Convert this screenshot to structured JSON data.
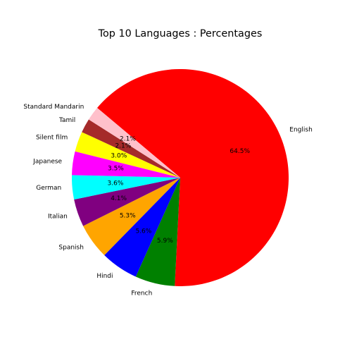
{
  "chart_data": {
    "type": "pie",
    "title": "Top 10 Languages : Percentages",
    "start_angle_deg": 140,
    "direction": "clockwise",
    "slices": [
      {
        "label": "English",
        "value": 64.5,
        "pct_label": "64.5%",
        "color": "#ff0000"
      },
      {
        "label": "French",
        "value": 5.9,
        "pct_label": "5.9%",
        "color": "#008000"
      },
      {
        "label": "Hindi",
        "value": 5.6,
        "pct_label": "5.6%",
        "color": "#0000ff"
      },
      {
        "label": "Spanish",
        "value": 5.3,
        "pct_label": "5.3%",
        "color": "#ffa500"
      },
      {
        "label": "Italian",
        "value": 4.1,
        "pct_label": "4.1%",
        "color": "#800080"
      },
      {
        "label": "German",
        "value": 3.6,
        "pct_label": "3.6%",
        "color": "#00ffff"
      },
      {
        "label": "Japanese",
        "value": 3.5,
        "pct_label": "3.5%",
        "color": "#ff00ff"
      },
      {
        "label": "Silent film",
        "value": 3.0,
        "pct_label": "3.0%",
        "color": "#ffff00"
      },
      {
        "label": "Tamil",
        "value": 2.1,
        "pct_label": "2.1%",
        "color": "#a52a2a"
      },
      {
        "label": "Standard Mandarin",
        "value": 2.1,
        "pct_label": "2.1%",
        "color": "#ffc0cb"
      }
    ]
  }
}
